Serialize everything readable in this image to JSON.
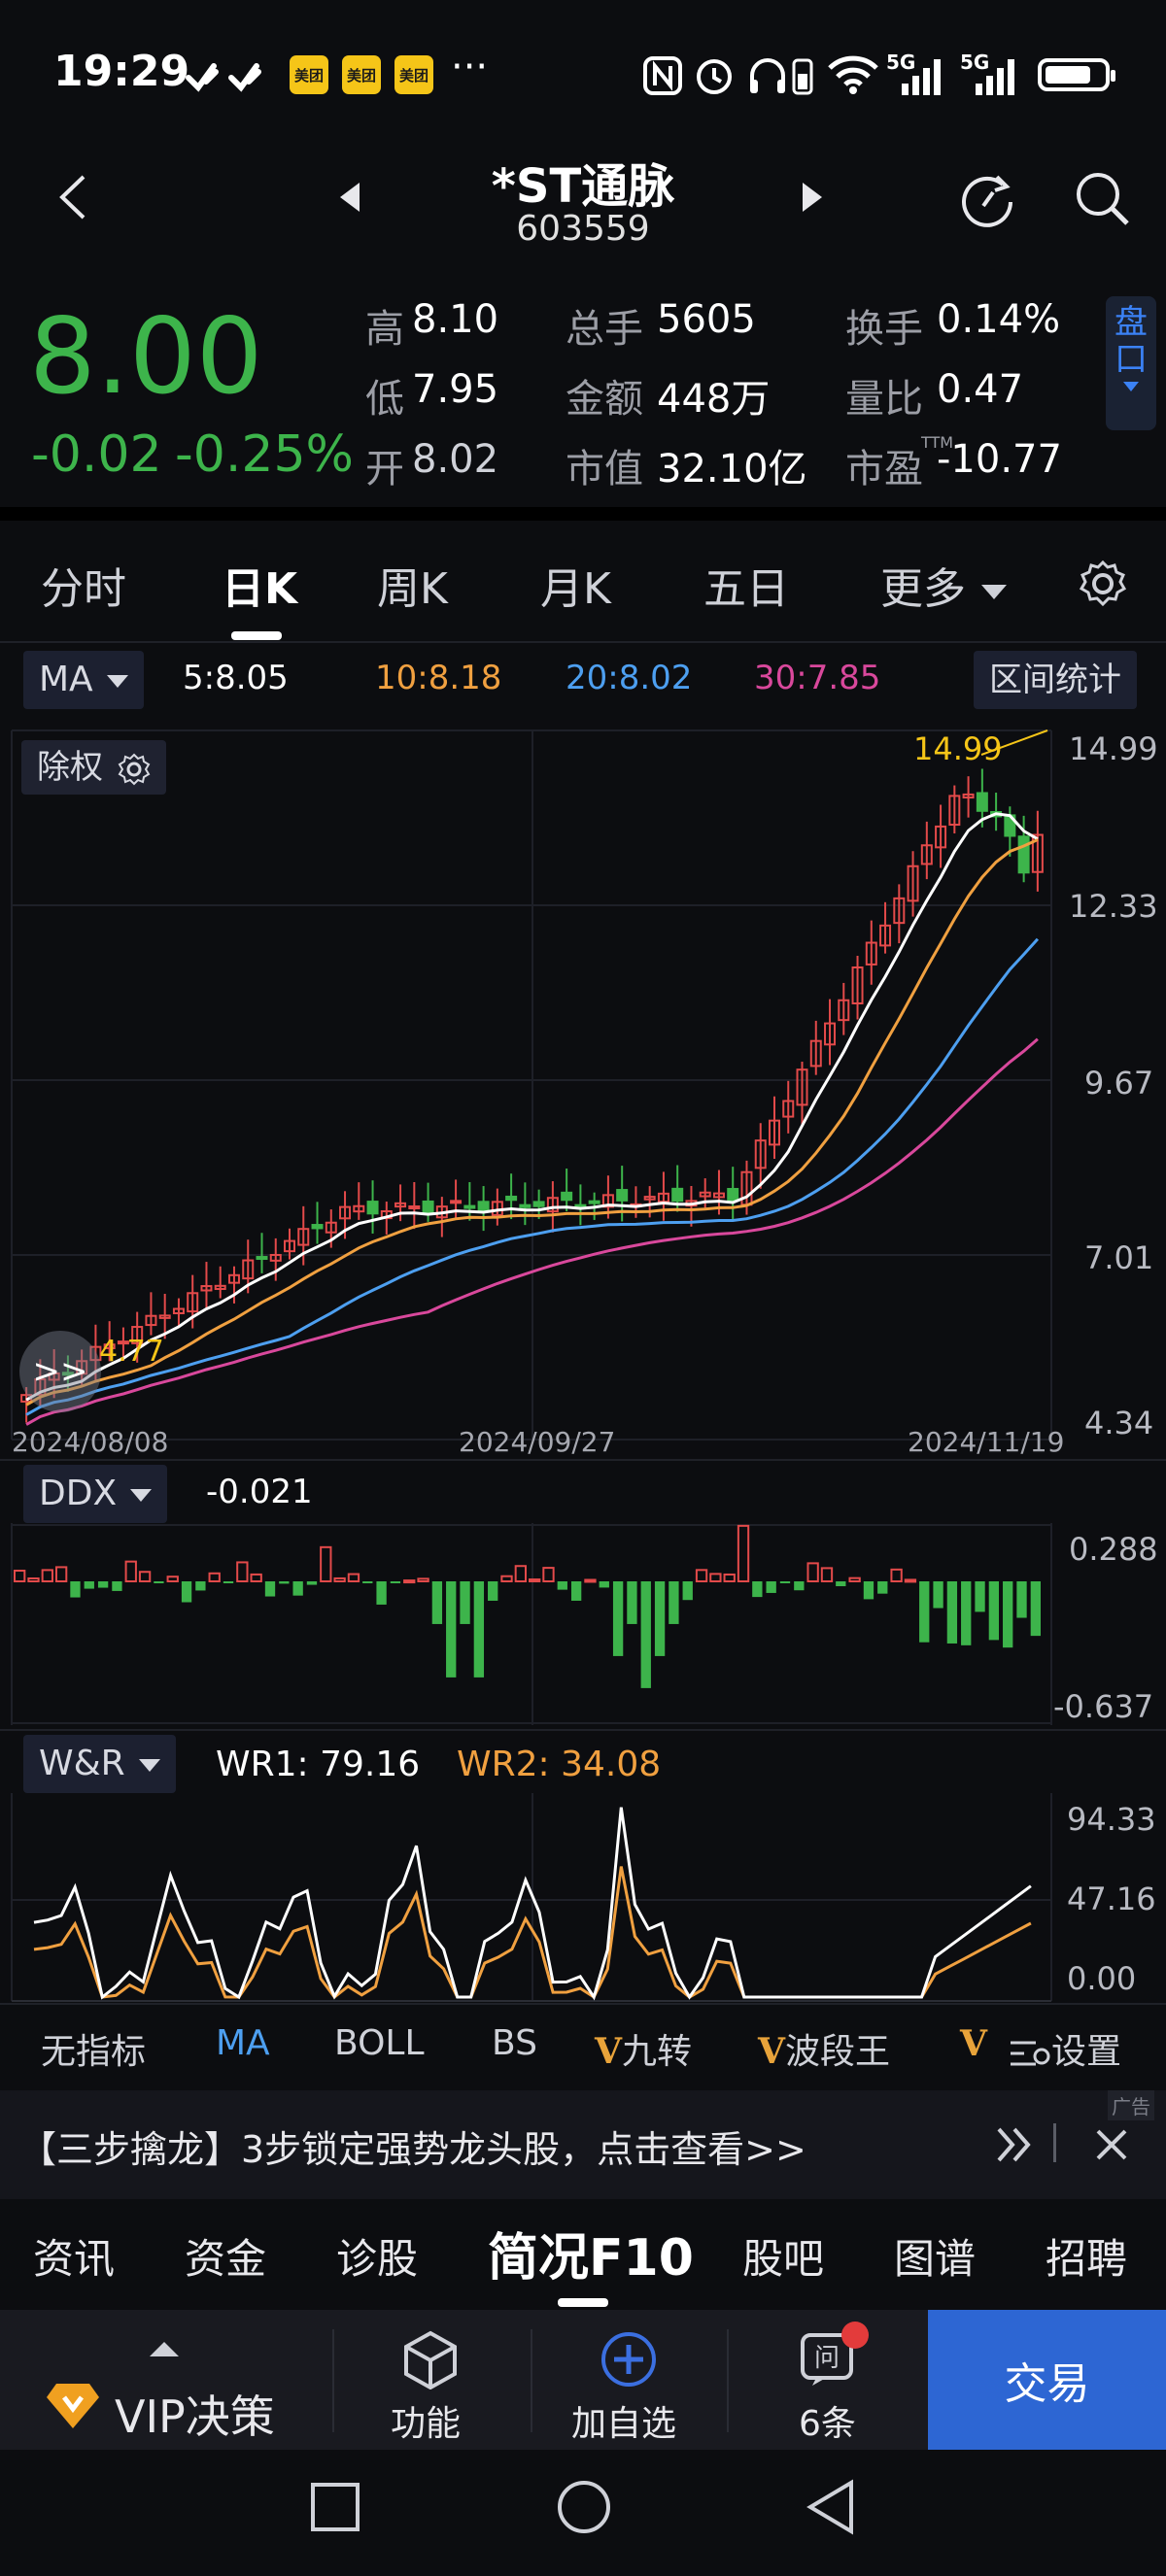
{
  "status_bar": {
    "time": "19:29",
    "app_badge_label": "美团",
    "more_icon": "···",
    "network_labels": [
      "5G",
      "5G"
    ],
    "battery_level_percent": 80
  },
  "header": {
    "stock_name": "*ST通脉",
    "stock_code": "603559"
  },
  "quote": {
    "price": "8.00",
    "change": "-0.02",
    "change_pct": "-0.25%",
    "high_label": "高",
    "high": "8.10",
    "low_label": "低",
    "low": "7.95",
    "open_label": "开",
    "open": "8.02",
    "volume_label": "总手",
    "volume": "5605",
    "amount_label": "金额",
    "amount": "448万",
    "mktcap_label": "市值",
    "mktcap": "32.10亿",
    "turnover_label": "换手",
    "turnover": "0.14%",
    "vol_ratio_label": "量比",
    "vol_ratio": "0.47",
    "pe_label": "市盈",
    "pe_sup": "TTM",
    "pe": "-10.77",
    "pankou_label": "盘口"
  },
  "period_tabs": [
    {
      "label": "分时"
    },
    {
      "label": "日K"
    },
    {
      "label": "周K"
    },
    {
      "label": "月K"
    },
    {
      "label": "五日"
    },
    {
      "label": "更多"
    }
  ],
  "ma_bar": {
    "indicator": "MA",
    "ma5": "5:8.05",
    "ma10": "10:8.18",
    "ma20": "20:8.02",
    "ma30": "30:7.85",
    "range_stats": "区间统计",
    "chuquan": "除权"
  },
  "kline_axis": {
    "y_ticks": [
      "14.99",
      "12.33",
      "9.67",
      "7.01",
      "4.34"
    ],
    "x_ticks": [
      "2024/08/08",
      "2024/09/27",
      "2024/11/19"
    ],
    "high_marker": "14.99",
    "low_marker": "4.77"
  },
  "ddx": {
    "label": "DDX",
    "value": "-0.021",
    "y_max": "0.288",
    "y_min": "-0.637"
  },
  "wr": {
    "label": "W&R",
    "wr1": "WR1:  79.16",
    "wr2": "WR2:  34.08",
    "y_ticks": [
      "94.33",
      "47.16",
      "0.00"
    ]
  },
  "indicator_tabs": [
    {
      "label": "无指标"
    },
    {
      "label": "MA"
    },
    {
      "label": "BOLL"
    },
    {
      "label": "BS"
    },
    {
      "label": "九转"
    },
    {
      "label": "波段王"
    },
    {
      "label": "设置"
    }
  ],
  "banner": {
    "text": "【三步擒龙】3步锁定强势龙头股，点击查看>>",
    "ad_tag": "广告"
  },
  "f10_tabs": [
    {
      "label": "资讯"
    },
    {
      "label": "资金"
    },
    {
      "label": "诊股"
    },
    {
      "label": "简况F10"
    },
    {
      "label": "股吧"
    },
    {
      "label": "图谱"
    },
    {
      "label": "招聘"
    }
  ],
  "bottom_bar": {
    "vip": "VIP决策",
    "function": "功能",
    "add_watch": "加自选",
    "ask": "6条",
    "trade": "交易"
  },
  "colors": {
    "up": "#e34a4a",
    "down": "#3db44b",
    "ma5": "#ffffff",
    "ma10": "#f0a040",
    "ma20": "#4d9ff0",
    "ma30": "#d9489c",
    "accent": "#2d66d3"
  }
}
